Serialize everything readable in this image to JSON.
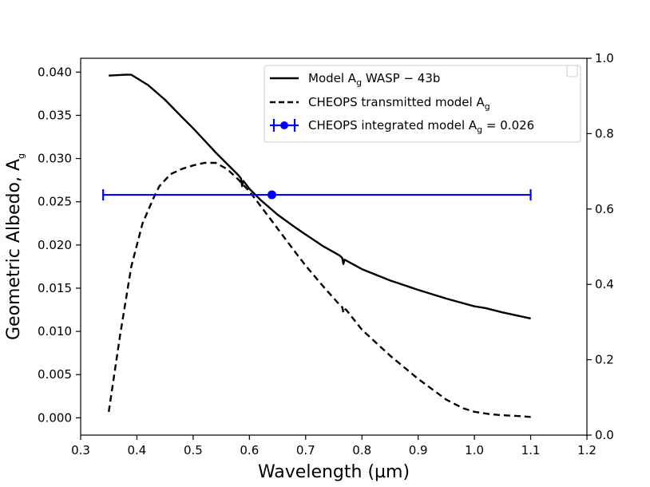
{
  "chart_data": {
    "type": "line",
    "xlabel": "Wavelength (µm)",
    "ylabel": "Geometric Albedo, A",
    "ylabel_subscript": "g",
    "xlim": [
      0.3,
      1.2
    ],
    "ylim": [
      -0.002,
      0.0416
    ],
    "y2lim": [
      0.0,
      1.0
    ],
    "x_ticks": [
      "0.3",
      "0.4",
      "0.5",
      "0.6",
      "0.7",
      "0.8",
      "0.9",
      "1.0",
      "1.1",
      "1.2"
    ],
    "x_tick_values": [
      0.3,
      0.4,
      0.5,
      0.6,
      0.7,
      0.8,
      0.9,
      1.0,
      1.1,
      1.2
    ],
    "y_ticks": [
      "0.000",
      "0.005",
      "0.010",
      "0.015",
      "0.020",
      "0.025",
      "0.030",
      "0.035",
      "0.040"
    ],
    "y_tick_values": [
      0.0,
      0.005,
      0.01,
      0.015,
      0.02,
      0.025,
      0.03,
      0.035,
      0.04
    ],
    "y2_ticks": [
      "0.0",
      "0.2",
      "0.4",
      "0.6",
      "0.8",
      "1.0"
    ],
    "y2_tick_values": [
      0.0,
      0.2,
      0.4,
      0.6,
      0.8,
      1.0
    ],
    "legend_position": "top-right",
    "series": [
      {
        "name": "Model A_g WASP-43b",
        "style": "solid",
        "color": "#000000",
        "x": [
          0.35,
          0.38,
          0.39,
          0.42,
          0.45,
          0.48,
          0.5,
          0.52,
          0.54,
          0.56,
          0.58,
          0.585,
          0.587,
          0.589,
          0.592,
          0.6,
          0.62,
          0.65,
          0.68,
          0.7,
          0.73,
          0.76,
          0.765,
          0.767,
          0.769,
          0.772,
          0.8,
          0.85,
          0.9,
          0.95,
          1.0,
          1.02,
          1.05,
          1.1
        ],
        "values": [
          0.0396,
          0.0397,
          0.0397,
          0.0385,
          0.0368,
          0.0348,
          0.0335,
          0.0321,
          0.0307,
          0.0294,
          0.0281,
          0.0277,
          0.0268,
          0.0274,
          0.0272,
          0.0265,
          0.0252,
          0.0235,
          0.0221,
          0.0212,
          0.0199,
          0.0188,
          0.0185,
          0.0178,
          0.0183,
          0.0182,
          0.0172,
          0.0159,
          0.0148,
          0.0138,
          0.0129,
          0.0127,
          0.0122,
          0.0115
        ]
      },
      {
        "name": "CHEOPS transmitted model A_g",
        "style": "dashed",
        "color": "#000000",
        "x": [
          0.35,
          0.37,
          0.39,
          0.41,
          0.43,
          0.44,
          0.46,
          0.48,
          0.5,
          0.52,
          0.54,
          0.56,
          0.58,
          0.6,
          0.62,
          0.65,
          0.68,
          0.7,
          0.73,
          0.76,
          0.765,
          0.767,
          0.769,
          0.772,
          0.8,
          0.85,
          0.9,
          0.95,
          0.98,
          1.0,
          1.03,
          1.05,
          1.08,
          1.1
        ],
        "values": [
          0.0007,
          0.0095,
          0.0175,
          0.0225,
          0.0255,
          0.0268,
          0.0282,
          0.0288,
          0.0292,
          0.0295,
          0.0295,
          0.0288,
          0.0276,
          0.0262,
          0.0245,
          0.0219,
          0.0193,
          0.0176,
          0.0153,
          0.0131,
          0.0128,
          0.0122,
          0.0126,
          0.0125,
          0.0102,
          0.0072,
          0.0045,
          0.0021,
          0.0011,
          0.0007,
          0.0004,
          0.0003,
          0.0002,
          0.0001
        ]
      },
      {
        "name": "CHEOPS integrated model A_g = 0.026",
        "style": "errorbar",
        "color": "#0000ff",
        "x": [
          0.64
        ],
        "values": [
          0.0258
        ],
        "xerr_low": 0.34,
        "xerr_high": 1.1
      }
    ],
    "legend_entries": [
      {
        "prefix": "Model A",
        "sub": "g",
        "suffix": " WASP − 43b",
        "style": "solid"
      },
      {
        "prefix": "CHEOPS transmitted model A",
        "sub": "g",
        "suffix": "",
        "style": "dashed"
      },
      {
        "prefix": "CHEOPS integrated model A",
        "sub": "g",
        "suffix": " = 0.026",
        "style": "errorbar"
      }
    ]
  }
}
